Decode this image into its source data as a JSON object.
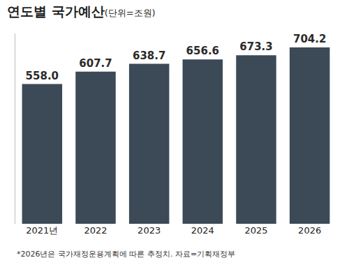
{
  "chart_data": {
    "type": "bar",
    "title": "연도별 국가예산",
    "subtitle": "(단위=조원)",
    "categories": [
      "2021년",
      "2022",
      "2023",
      "2024",
      "2025",
      "2026"
    ],
    "values": [
      558.0,
      607.7,
      638.7,
      656.6,
      673.3,
      704.2
    ],
    "value_labels": [
      "558.0",
      "607.7",
      "638.7",
      "656.6",
      "673.3",
      "704.2"
    ],
    "data_labels": true,
    "color": "#3c4a57",
    "ylim": [
      0,
      760
    ],
    "grid": false,
    "tick_labels": "x",
    "annotations": [
      "*2026년은 국가재정운용계획에 따른 추정치. 자료=기획재정부"
    ]
  }
}
